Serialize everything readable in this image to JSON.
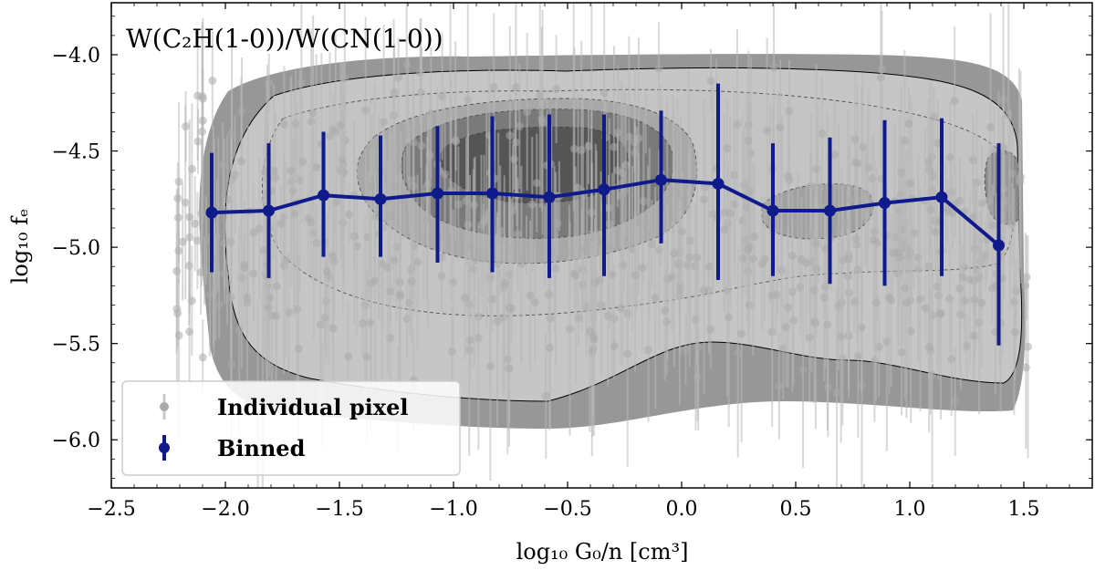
{
  "chart_data": {
    "type": "line",
    "title": "W(C₂H(1-0))/W(CN(1-0))",
    "xlabel": "log₁₀ G₀/n [cm³]",
    "ylabel": "log₁₀ fₑ",
    "xlim": [
      -2.5,
      1.8
    ],
    "ylim": [
      -6.25,
      -3.73
    ],
    "xticks": [
      -2.5,
      -2.0,
      -1.5,
      -1.0,
      -0.5,
      0.0,
      0.5,
      1.0,
      1.5
    ],
    "xtick_labels": [
      "−2.5",
      "−2.0",
      "−1.5",
      "−1.0",
      "−0.5",
      "0.0",
      "0.5",
      "1.0",
      "1.5"
    ],
    "yticks": [
      -6.0,
      -5.5,
      -5.0,
      -4.5,
      -4.0
    ],
    "ytick_labels": [
      "−6.0",
      "−5.5",
      "−5.0",
      "−4.5",
      "−4.0"
    ],
    "legend": {
      "placement": "bottom-left",
      "entries": [
        {
          "label": "Individual pixel",
          "color": "#a9a9a9"
        },
        {
          "label": "Binned",
          "color": "#0f1a8c"
        }
      ]
    },
    "binned": {
      "name": "Binned",
      "color": "#0f1a8c",
      "x": [
        -2.06,
        -1.81,
        -1.57,
        -1.32,
        -1.07,
        -0.83,
        -0.58,
        -0.34,
        -0.09,
        0.16,
        0.4,
        0.65,
        0.89,
        1.14,
        1.39
      ],
      "y": [
        -4.82,
        -4.81,
        -4.73,
        -4.75,
        -4.72,
        -4.72,
        -4.74,
        -4.7,
        -4.65,
        -4.67,
        -4.81,
        -4.81,
        -4.77,
        -4.74,
        -4.99
      ],
      "y_low": [
        -5.13,
        -5.16,
        -5.05,
        -5.05,
        -5.08,
        -5.13,
        -5.16,
        -5.15,
        -4.98,
        -5.17,
        -5.15,
        -5.19,
        -5.2,
        -5.15,
        -5.51
      ],
      "y_high": [
        -4.51,
        -4.46,
        -4.4,
        -4.42,
        -4.37,
        -4.32,
        -4.31,
        -4.31,
        -4.29,
        -4.15,
        -4.46,
        -4.43,
        -4.34,
        -4.33,
        -4.46
      ]
    },
    "pixels": {
      "name": "Individual pixel",
      "color": "#a9a9a9",
      "x_range": [
        -2.22,
        1.52
      ],
      "y_envelope_low": [
        -5.9,
        -5.8,
        -5.5
      ],
      "y_envelope_high": [
        -4.0,
        -4.05,
        -4.1
      ]
    }
  }
}
